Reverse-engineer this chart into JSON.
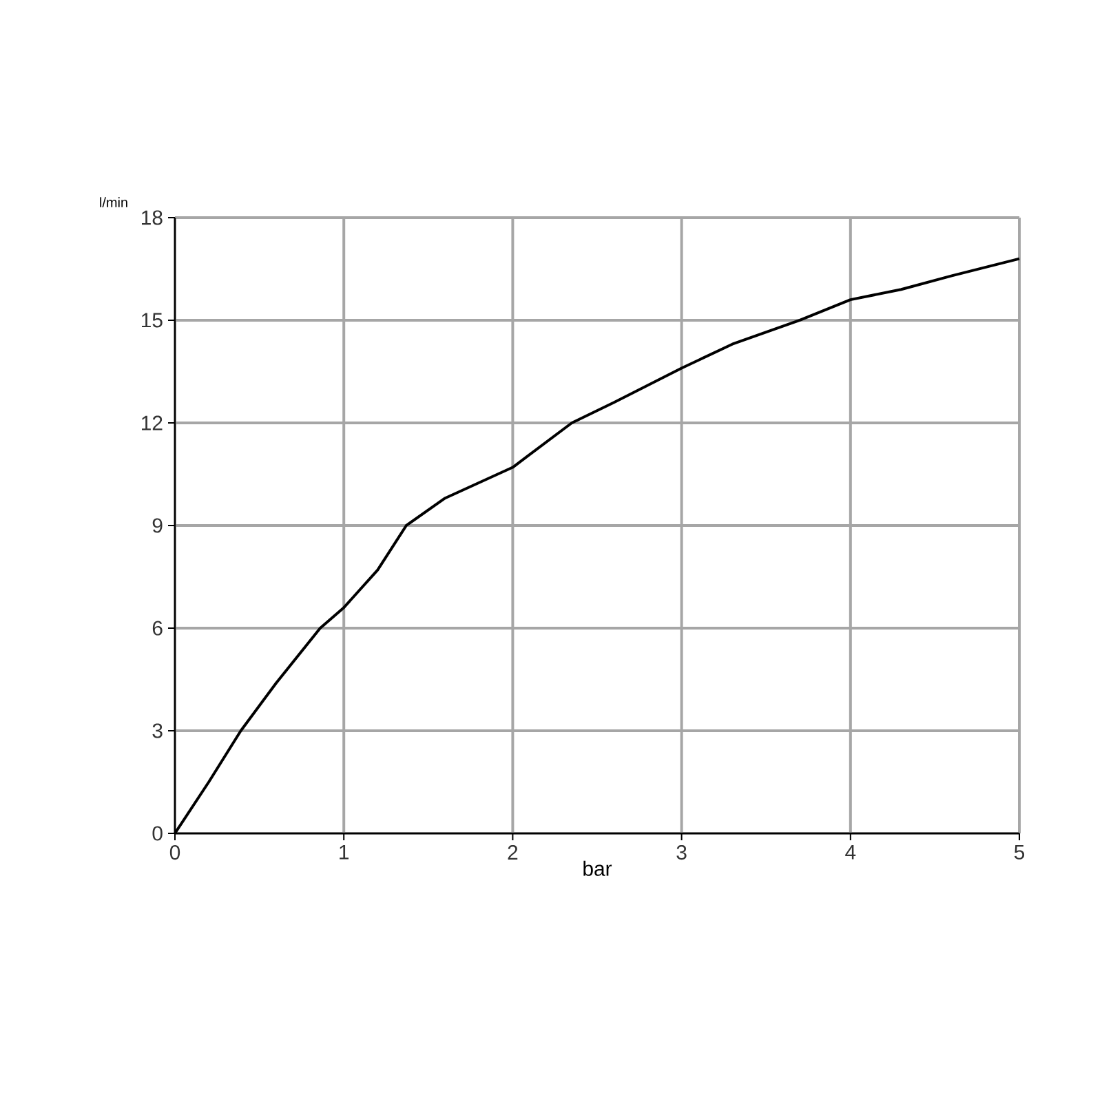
{
  "chart_data": {
    "type": "line",
    "xlabel": "bar",
    "ylabel": "l/min",
    "x": [
      0,
      0.2,
      0.39,
      0.6,
      0.86,
      1,
      1.2,
      1.37,
      1.6,
      2,
      2.35,
      2.6,
      3,
      3.3,
      3.7,
      4,
      4.3,
      4.6,
      5
    ],
    "values": [
      0,
      1.5,
      3,
      4.4,
      6,
      6.6,
      7.7,
      9,
      9.8,
      10.7,
      12,
      12.6,
      13.6,
      14.3,
      15,
      15.6,
      15.9,
      16.3,
      16.8
    ],
    "color": "#000000",
    "xlim": [
      0,
      5
    ],
    "ylim": [
      0,
      18
    ],
    "xticks": [
      0,
      1,
      2,
      3,
      4,
      5
    ],
    "yticks": [
      0,
      3,
      6,
      9,
      12,
      15,
      18
    ],
    "grid": true,
    "line_style": "solid",
    "marker": "none"
  }
}
